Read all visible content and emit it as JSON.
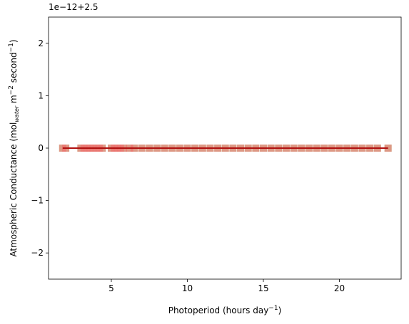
{
  "chart_data": {
    "type": "scatter",
    "offset_text": "1e−12+2.5",
    "xlabel": [
      "Photoperiod (hours day",
      "−1",
      ")"
    ],
    "ylabel": [
      "Atmospheric Conductance (mol",
      "water",
      " m",
      "−2",
      " second",
      "−1",
      ")"
    ],
    "xlim": [
      0.87,
      24.06
    ],
    "ylim": [
      -2.5,
      2.5
    ],
    "xticks": [
      5,
      10,
      15,
      20
    ],
    "yticks": [
      {
        "value": -2,
        "label": "−2"
      },
      {
        "value": -1,
        "label": "−1"
      },
      0,
      1,
      2
    ],
    "series": [
      {
        "type": "scatter",
        "color": "#90ee90",
        "x": [
          1.8,
          2.0,
          3.0,
          3.2,
          3.4,
          3.6,
          3.8,
          4.0,
          4.2,
          4.4,
          5.0,
          5.2,
          5.4,
          5.6,
          5.8,
          6.2,
          6.5,
          7.0,
          7.5,
          8.0,
          8.5,
          9.0,
          9.5,
          10.0,
          10.5,
          11.0,
          11.5,
          12.0,
          12.5,
          13.0,
          13.5,
          14.0,
          14.5,
          15.0,
          15.5,
          16.0,
          16.5,
          17.0,
          17.5,
          18.0,
          18.5,
          19.0,
          19.5,
          20.0,
          20.5,
          21.0,
          21.5,
          22.0,
          22.5,
          23.2
        ],
        "values": [
          0,
          0,
          0,
          0,
          0,
          0,
          0,
          0,
          0,
          0,
          0,
          0,
          0,
          0,
          0,
          0,
          0,
          0,
          0,
          0,
          0,
          0,
          0,
          0,
          0,
          0,
          0,
          0,
          0,
          0,
          0,
          0,
          0,
          0,
          0,
          0,
          0,
          0,
          0,
          0,
          0,
          0,
          0,
          0,
          0,
          0,
          0,
          0,
          0,
          0
        ]
      },
      {
        "type": "scatter",
        "color": "#f07070",
        "x": [
          1.8,
          2.0,
          3.0,
          3.2,
          3.4,
          3.6,
          3.8,
          4.0,
          4.2,
          4.4,
          5.0,
          5.2,
          5.4,
          5.6,
          5.8,
          6.2,
          6.5,
          7.0,
          7.5,
          8.0,
          8.5,
          9.0,
          9.5,
          10.0,
          10.5,
          11.0,
          11.5,
          12.0,
          12.5,
          13.0,
          13.5,
          14.0,
          14.5,
          15.0,
          15.5,
          16.0,
          16.5,
          17.0,
          17.5,
          18.0,
          18.5,
          19.0,
          19.5,
          20.0,
          20.5,
          21.0,
          21.5,
          22.0,
          22.5,
          23.2
        ],
        "values": [
          0,
          0,
          0,
          0,
          0,
          0,
          0,
          0,
          0,
          0,
          0,
          0,
          0,
          0,
          0,
          0,
          0,
          0,
          0,
          0,
          0,
          0,
          0,
          0,
          0,
          0,
          0,
          0,
          0,
          0,
          0,
          0,
          0,
          0,
          0,
          0,
          0,
          0,
          0,
          0,
          0,
          0,
          0,
          0,
          0,
          0,
          0,
          0,
          0,
          0
        ]
      },
      {
        "type": "line",
        "color": "#b01010",
        "x": [
          1.8,
          23.2
        ],
        "values": [
          0,
          0
        ]
      }
    ]
  }
}
